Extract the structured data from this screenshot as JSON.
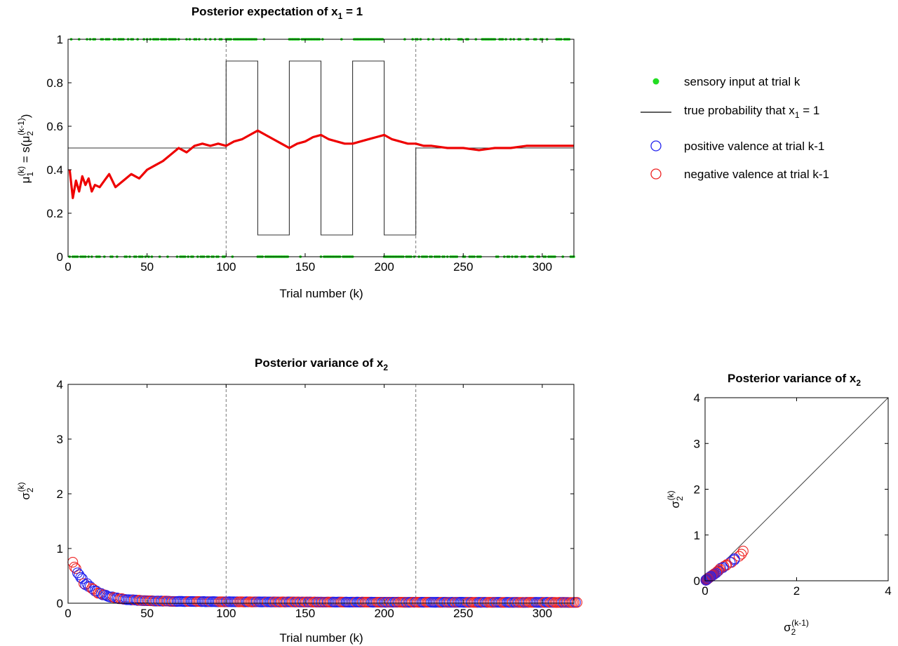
{
  "chart_data": [
    {
      "id": "top",
      "type": "line",
      "title": {
        "main": "Posterior expectation of x",
        "sub": "1",
        "rest": " = 1"
      },
      "xlabel": "Trial number (k)",
      "ylabel": {
        "mu": "μ",
        "mu_sub": "1",
        "mu_sup": "(k)",
        "eq": " = s(",
        "mu2": "μ",
        "mu2_sub": "2",
        "mu2_sup": "(k-1)",
        "close": ")"
      },
      "xlim": [
        0,
        320
      ],
      "ylim": [
        0,
        1
      ],
      "xticks": [
        0,
        50,
        100,
        150,
        200,
        250,
        300
      ],
      "yticks": [
        0,
        0.2,
        0.4,
        0.6,
        0.8,
        1
      ],
      "ytick_labels": [
        "0",
        "0.2",
        "0.4",
        "0.6",
        "0.8",
        "1"
      ],
      "vlines": [
        100,
        220
      ],
      "true_probability": {
        "x": [
          0,
          100,
          100,
          120,
          120,
          140,
          140,
          160,
          160,
          180,
          180,
          200,
          200,
          220,
          220,
          320
        ],
        "y": [
          0.5,
          0.5,
          0.9,
          0.9,
          0.1,
          0.1,
          0.9,
          0.9,
          0.1,
          0.1,
          0.9,
          0.9,
          0.1,
          0.1,
          0.5,
          0.5
        ]
      },
      "posterior_mean": {
        "x": [
          1,
          3,
          5,
          7,
          9,
          11,
          13,
          15,
          17,
          20,
          23,
          26,
          30,
          35,
          40,
          45,
          50,
          55,
          60,
          65,
          70,
          75,
          80,
          85,
          90,
          95,
          100,
          105,
          110,
          115,
          120,
          125,
          130,
          135,
          140,
          145,
          150,
          155,
          160,
          165,
          170,
          175,
          180,
          185,
          190,
          195,
          200,
          205,
          210,
          215,
          220,
          225,
          230,
          240,
          250,
          260,
          270,
          280,
          290,
          300,
          310,
          320
        ],
        "y": [
          0.4,
          0.27,
          0.35,
          0.3,
          0.37,
          0.33,
          0.36,
          0.3,
          0.33,
          0.32,
          0.35,
          0.38,
          0.32,
          0.35,
          0.38,
          0.36,
          0.4,
          0.42,
          0.44,
          0.47,
          0.5,
          0.48,
          0.51,
          0.52,
          0.51,
          0.52,
          0.51,
          0.53,
          0.54,
          0.56,
          0.58,
          0.56,
          0.54,
          0.52,
          0.5,
          0.52,
          0.53,
          0.55,
          0.56,
          0.54,
          0.53,
          0.52,
          0.52,
          0.53,
          0.54,
          0.55,
          0.56,
          0.54,
          0.53,
          0.52,
          0.52,
          0.51,
          0.51,
          0.5,
          0.5,
          0.49,
          0.5,
          0.5,
          0.51,
          0.51,
          0.51,
          0.51
        ]
      }
    },
    {
      "id": "bottom",
      "type": "scatter",
      "title": {
        "main": "Posterior variance of x",
        "sub": "2"
      },
      "xlabel": "Trial number (k)",
      "ylabel": {
        "sigma": "σ",
        "sigma_sub": "2",
        "sigma_sup": "(k)"
      },
      "xlim": [
        0,
        320
      ],
      "ylim": [
        0,
        4
      ],
      "xticks": [
        0,
        50,
        100,
        150,
        200,
        250,
        300
      ],
      "yticks": [
        0,
        1,
        2,
        3,
        4
      ],
      "vlines": [
        100,
        220
      ],
      "variance_curve": {
        "a": 0.028,
        "b": 0.65,
        "c": 0.09
      },
      "n_trials": 320
    },
    {
      "id": "right",
      "type": "scatter",
      "title": {
        "main": "Posterior variance of x",
        "sub": "2"
      },
      "xlabel": {
        "sigma": "σ",
        "sigma_sub": "2",
        "sigma_sup": "(k-1)"
      },
      "ylabel": {
        "sigma": "σ",
        "sigma_sub": "2",
        "sigma_sup": "(k)"
      },
      "xlim": [
        0,
        4
      ],
      "ylim": [
        0,
        4
      ],
      "xticks": [
        0,
        2,
        4
      ],
      "yticks": [
        0,
        1,
        2,
        3,
        4
      ],
      "diagonal": [
        [
          0,
          0
        ],
        [
          4,
          4
        ]
      ]
    }
  ],
  "legend": {
    "placement": "right of top chart",
    "entries": [
      {
        "label": "sensory input at trial k",
        "marker": "dot",
        "color": "#22dd22"
      },
      {
        "label_pre": "true probability that x",
        "label_sub": "1",
        "label_post": " = 1",
        "marker": "line",
        "color": "#000000"
      },
      {
        "label": "positive valence at trial k-1",
        "marker": "circle",
        "color": "#2222ee"
      },
      {
        "label": "negative valence at trial k-1",
        "marker": "circle",
        "color": "#ee2222"
      }
    ]
  },
  "colors": {
    "input": "#22dd22",
    "mean": "#ee0000",
    "positive": "#2222ee",
    "negative": "#ee2222",
    "axis": "#000000"
  }
}
